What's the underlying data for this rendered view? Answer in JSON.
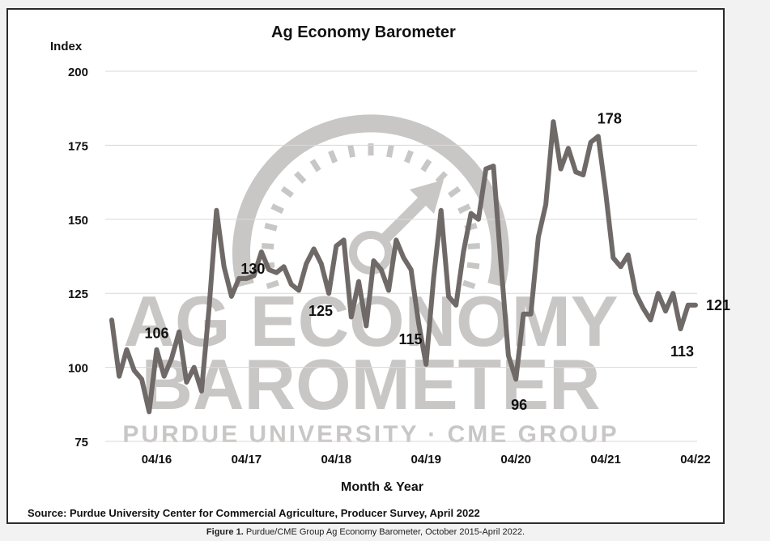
{
  "caption": {
    "prefix": "Figure 1.",
    "text": "Purdue/CME Group Ag Economy Barometer, October 2015-April 2022."
  },
  "watermark": {
    "line1": "AG ECONOMY",
    "line2": "BAROMETER",
    "line3": "PURDUE UNIVERSITY  ·  CME GROUP"
  },
  "colors": {
    "line": "#6f6a68",
    "grid": "#d9d9d9",
    "text": "#111111",
    "watermark": "#c9c7c6"
  },
  "chart_data": {
    "type": "line",
    "title": "Ag Economy Barometer",
    "ylabel": "Index",
    "xlabel": "Month & Year",
    "source": "Source: Purdue University Center for Commercial Agriculture, Producer Survey, April 2022",
    "ylim": [
      75,
      200
    ],
    "yticks": [
      75,
      100,
      125,
      150,
      175,
      200
    ],
    "grid": true,
    "x_tick_labels": [
      "04/16",
      "04/17",
      "04/18",
      "04/19",
      "04/20",
      "04/21",
      "04/22"
    ],
    "x_tick_dates": [
      "2016-04",
      "2017-04",
      "2018-04",
      "2019-04",
      "2020-04",
      "2021-04",
      "2022-04"
    ],
    "series": [
      {
        "x": [
          "2015-10",
          "2015-11",
          "2015-12",
          "2016-01",
          "2016-02",
          "2016-03",
          "2016-04",
          "2016-05",
          "2016-06",
          "2016-07",
          "2016-08",
          "2016-09",
          "2016-10",
          "2016-11",
          "2016-12",
          "2017-01",
          "2017-02",
          "2017-03",
          "2017-04",
          "2017-05",
          "2017-06",
          "2017-07",
          "2017-08",
          "2017-09",
          "2017-10",
          "2017-11",
          "2017-12",
          "2018-01",
          "2018-02",
          "2018-03",
          "2018-04",
          "2018-05",
          "2018-06",
          "2018-07",
          "2018-08",
          "2018-09",
          "2018-10",
          "2018-11",
          "2018-12",
          "2019-01",
          "2019-02",
          "2019-03",
          "2019-04",
          "2019-05",
          "2019-06",
          "2019-07",
          "2019-08",
          "2019-09",
          "2019-10",
          "2019-11",
          "2019-12",
          "2020-01",
          "2020-02",
          "2020-03",
          "2020-04",
          "2020-05",
          "2020-06",
          "2020-07",
          "2020-08",
          "2020-09",
          "2020-10",
          "2020-11",
          "2020-12",
          "2021-01",
          "2021-02",
          "2021-03",
          "2021-04",
          "2021-05",
          "2021-06",
          "2021-07",
          "2021-08",
          "2021-09",
          "2021-10",
          "2021-11",
          "2021-12",
          "2022-01",
          "2022-02",
          "2022-03",
          "2022-04"
        ],
        "values": [
          116,
          97,
          106,
          99,
          96,
          85,
          106,
          97,
          103,
          112,
          95,
          100,
          92,
          120,
          153,
          134,
          124,
          130,
          130,
          131,
          139,
          133,
          132,
          134,
          128,
          126,
          135,
          140,
          135,
          125,
          141,
          143,
          117,
          129,
          114,
          136,
          133,
          126,
          143,
          137,
          133,
          115,
          101,
          130,
          153,
          124,
          121,
          139,
          152,
          150,
          167,
          168,
          135,
          104,
          96,
          118,
          118,
          144,
          155,
          183,
          167,
          174,
          166,
          165,
          176,
          178,
          159,
          137,
          134,
          138,
          125,
          120,
          116,
          125,
          119,
          125,
          113,
          121,
          121
        ]
      }
    ],
    "annotations": [
      {
        "text": "106",
        "x": "2016-04",
        "y": 106
      },
      {
        "text": "130",
        "x": "2017-04",
        "y": 130
      },
      {
        "text": "125",
        "x": "2018-03",
        "y": 125
      },
      {
        "text": "115",
        "x": "2019-03",
        "y": 115
      },
      {
        "text": "96",
        "x": "2020-04",
        "y": 96
      },
      {
        "text": "178",
        "x": "2021-03",
        "y": 178
      },
      {
        "text": "113",
        "x": "2022-02",
        "y": 113
      },
      {
        "text": "121",
        "x": "2022-04",
        "y": 121
      }
    ]
  }
}
